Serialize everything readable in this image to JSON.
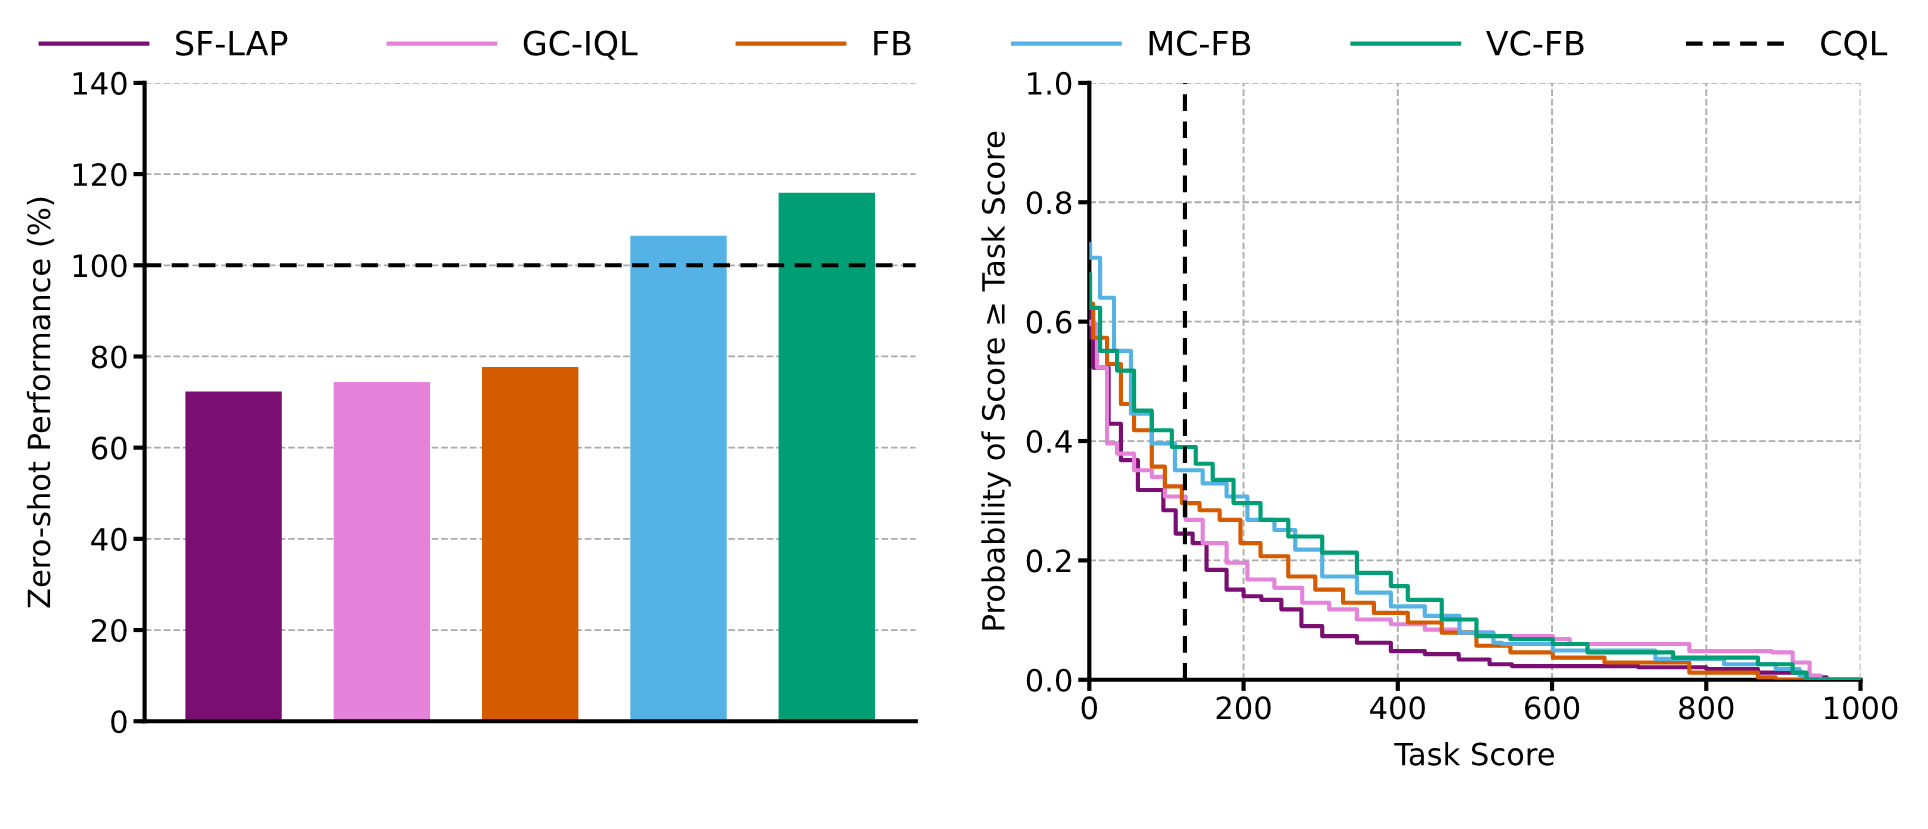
{
  "chart_data": [
    {
      "type": "bar",
      "ylabel": "Zero-shot Performance (%)",
      "categories": [
        null,
        null,
        null,
        null,
        null
      ],
      "values": [
        72.3,
        74.4,
        77.7,
        106.5,
        115.9
      ],
      "colors": [
        "#7b0e72",
        "#e583db",
        "#d45b00",
        "#55b2e4",
        "#009e74"
      ],
      "ylim": [
        0,
        140
      ],
      "yticks": [
        0,
        20,
        40,
        60,
        80,
        100,
        120,
        140
      ],
      "grid": "y",
      "tick_labels": "y",
      "ref_lines": [
        {
          "axis": "y",
          "value": 100,
          "color": "#000000",
          "line_style": "dashed"
        }
      ]
    },
    {
      "type": "step",
      "xlabel": "Task Score",
      "ylabel": "Probability of Score ≥ Task Score",
      "xlim": [
        0,
        1000
      ],
      "xticks": [
        0,
        200,
        400,
        600,
        800,
        1000
      ],
      "ylim": [
        0,
        1.0
      ],
      "yticks": [
        {
          "value": 0,
          "label": "0.0"
        },
        0.2,
        0.4,
        0.6,
        0.8,
        {
          "value": 1,
          "label": "1.0"
        }
      ],
      "grid": true,
      "legend": "top",
      "series": [
        {
          "name": "SF-LAP",
          "color": "#7b0e72",
          "x": [
            0,
            1,
            5,
            25,
            41,
            63,
            96,
            112,
            134,
            152,
            178,
            200,
            223,
            249,
            275,
            302,
            347,
            391,
            435,
            479,
            519,
            548,
            712,
            800,
            867,
            925,
            956,
            1000
          ],
          "values": [
            0.62,
            0.573,
            0.523,
            0.429,
            0.368,
            0.318,
            0.284,
            0.245,
            0.229,
            0.184,
            0.151,
            0.14,
            0.134,
            0.118,
            0.09,
            0.073,
            0.062,
            0.048,
            0.043,
            0.034,
            0.026,
            0.023,
            0.021,
            0.018,
            0.012,
            0.004,
            0.0,
            0.0
          ]
        },
        {
          "name": "GC-IQL",
          "color": "#e583db",
          "x": [
            0,
            1,
            10,
            23,
            36,
            58,
            81,
            98,
            125,
            147,
            178,
            205,
            240,
            276,
            311,
            347,
            391,
            435,
            480,
            524,
            557,
            601,
            623,
            734,
            778,
            885,
            912,
            934,
            948,
            1000
          ],
          "values": [
            0.6,
            0.596,
            0.523,
            0.396,
            0.379,
            0.351,
            0.34,
            0.307,
            0.268,
            0.229,
            0.196,
            0.168,
            0.154,
            0.129,
            0.118,
            0.101,
            0.093,
            0.084,
            0.079,
            0.073,
            0.073,
            0.068,
            0.06,
            0.06,
            0.048,
            0.046,
            0.029,
            0.007,
            0.0,
            0.0
          ]
        },
        {
          "name": "FB",
          "color": "#d45b00",
          "x": [
            0,
            5,
            23,
            41,
            58,
            81,
            98,
            120,
            143,
            169,
            196,
            222,
            258,
            293,
            329,
            369,
            413,
            457,
            502,
            546,
            601,
            668,
            778,
            867,
            890,
            1000
          ],
          "values": [
            0.63,
            0.573,
            0.529,
            0.462,
            0.418,
            0.357,
            0.324,
            0.296,
            0.284,
            0.268,
            0.229,
            0.207,
            0.173,
            0.151,
            0.129,
            0.112,
            0.096,
            0.079,
            0.057,
            0.046,
            0.037,
            0.029,
            0.012,
            0.004,
            0.0,
            0.0
          ]
        },
        {
          "name": "MC-FB",
          "color": "#55b2e4",
          "x": [
            0,
            1,
            14,
            32,
            54,
            81,
            111,
            147,
            178,
            205,
            240,
            267,
            302,
            347,
            391,
            435,
            480,
            524,
            535,
            601,
            734,
            823,
            890,
            921,
            930,
            1000
          ],
          "values": [
            0.73,
            0.707,
            0.64,
            0.551,
            0.446,
            0.396,
            0.351,
            0.329,
            0.307,
            0.268,
            0.251,
            0.218,
            0.173,
            0.146,
            0.123,
            0.107,
            0.079,
            0.062,
            0.06,
            0.049,
            0.035,
            0.026,
            0.018,
            0.007,
            0.0,
            0.0
          ]
        },
        {
          "name": "VC-FB",
          "color": "#009e74",
          "x": [
            0,
            1,
            14,
            36,
            58,
            81,
            107,
            138,
            160,
            187,
            222,
            258,
            302,
            347,
            391,
            413,
            457,
            502,
            546,
            601,
            646,
            757,
            867,
            912,
            930,
            1000
          ],
          "values": [
            0.68,
            0.623,
            0.551,
            0.518,
            0.451,
            0.418,
            0.39,
            0.362,
            0.335,
            0.296,
            0.268,
            0.24,
            0.213,
            0.179,
            0.157,
            0.134,
            0.101,
            0.073,
            0.068,
            0.06,
            0.046,
            0.037,
            0.026,
            0.012,
            0.0,
            0.0
          ]
        }
      ],
      "ref_lines": [
        {
          "axis": "x",
          "value": 124,
          "label": "CQL",
          "color": "#000000",
          "line_style": "dashed"
        }
      ]
    }
  ]
}
